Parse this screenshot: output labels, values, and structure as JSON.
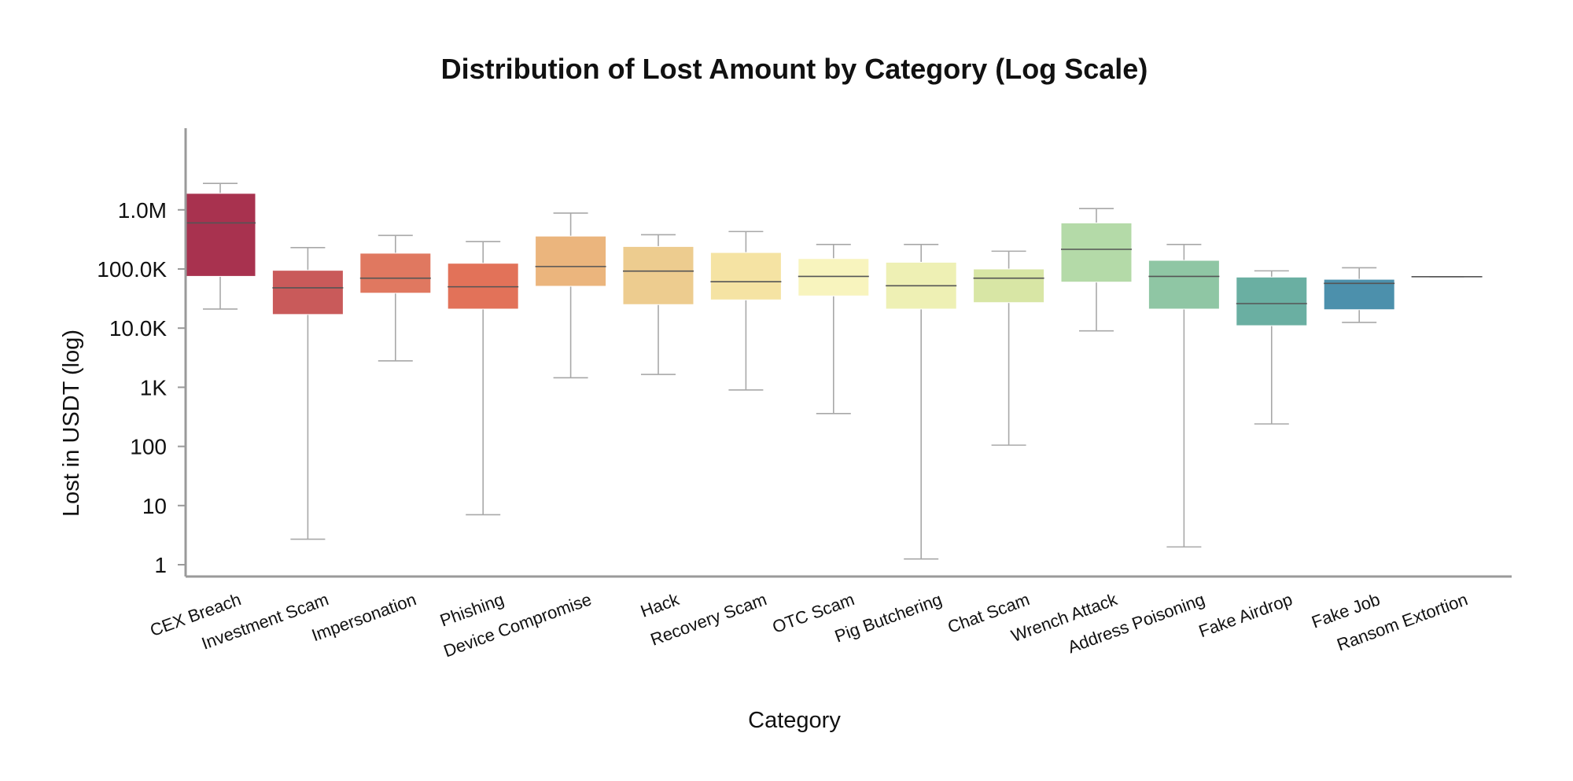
{
  "chart_data": {
    "type": "box",
    "title": "Distribution of Lost Amount by Category (Log Scale)",
    "xlabel": "Category",
    "ylabel": "Lost in USDT (log)",
    "yscale": "log",
    "ylim": [
      0.6,
      30000000
    ],
    "yticks": [
      1,
      10,
      100,
      1000,
      10000,
      100000,
      1000000
    ],
    "ytick_labels": [
      "1",
      "10",
      "100",
      "1K",
      "10.0K",
      "100.0K",
      "1.0M"
    ],
    "grid": false,
    "categories": [
      "CEX Breach",
      "Investment Scam",
      "Impersonation",
      "Phishing",
      "Device Compromise",
      "Hack",
      "Recovery Scam",
      "OTC Scam",
      "Pig Butchering",
      "Chat Scam",
      "Wrench Attack",
      "Address Poisoning",
      "Fake Airdrop",
      "Fake Job",
      "Ransom Extortion"
    ],
    "colors": [
      "#a8324f",
      "#c95a5a",
      "#e07860",
      "#e27259",
      "#ebb57d",
      "#edcc8f",
      "#f5e3a3",
      "#f8f4be",
      "#eef0b4",
      "#d8e6a5",
      "#b4daa8",
      "#8fc6a4",
      "#6aafa2",
      "#4c90ac",
      "#4c90ac"
    ],
    "boxes": [
      {
        "min": 21000,
        "q1": 75000,
        "median": 600000,
        "q3": 1900000,
        "max": 2800000
      },
      {
        "min": 2.7,
        "q1": 17000,
        "median": 48000,
        "q3": 95000,
        "max": 230000
      },
      {
        "min": 2800,
        "q1": 39000,
        "median": 70000,
        "q3": 185000,
        "max": 370000
      },
      {
        "min": 7,
        "q1": 21000,
        "median": 50000,
        "q3": 125000,
        "max": 290000
      },
      {
        "min": 1450,
        "q1": 51000,
        "median": 110000,
        "q3": 360000,
        "max": 880000
      },
      {
        "min": 1650,
        "q1": 25000,
        "median": 92000,
        "q3": 240000,
        "max": 380000
      },
      {
        "min": 900,
        "q1": 30000,
        "median": 61000,
        "q3": 190000,
        "max": 430000
      },
      {
        "min": 360,
        "q1": 35000,
        "median": 75000,
        "q3": 150000,
        "max": 260000
      },
      {
        "min": 1.25,
        "q1": 21000,
        "median": 52000,
        "q3": 130000,
        "max": 260000
      },
      {
        "min": 105,
        "q1": 27000,
        "median": 70000,
        "q3": 100000,
        "max": 200000
      },
      {
        "min": 9000,
        "q1": 60000,
        "median": 215000,
        "q3": 600000,
        "max": 1050000
      },
      {
        "min": 2,
        "q1": 21000,
        "median": 75000,
        "q3": 140000,
        "max": 260000
      },
      {
        "min": 240,
        "q1": 11000,
        "median": 26000,
        "q3": 73000,
        "max": 93000
      },
      {
        "min": 12500,
        "q1": 20500,
        "median": 57000,
        "q3": 67000,
        "max": 105000
      },
      {
        "min": 74000,
        "q1": 74000,
        "median": 74000,
        "q3": 74000,
        "max": 74000
      }
    ]
  }
}
